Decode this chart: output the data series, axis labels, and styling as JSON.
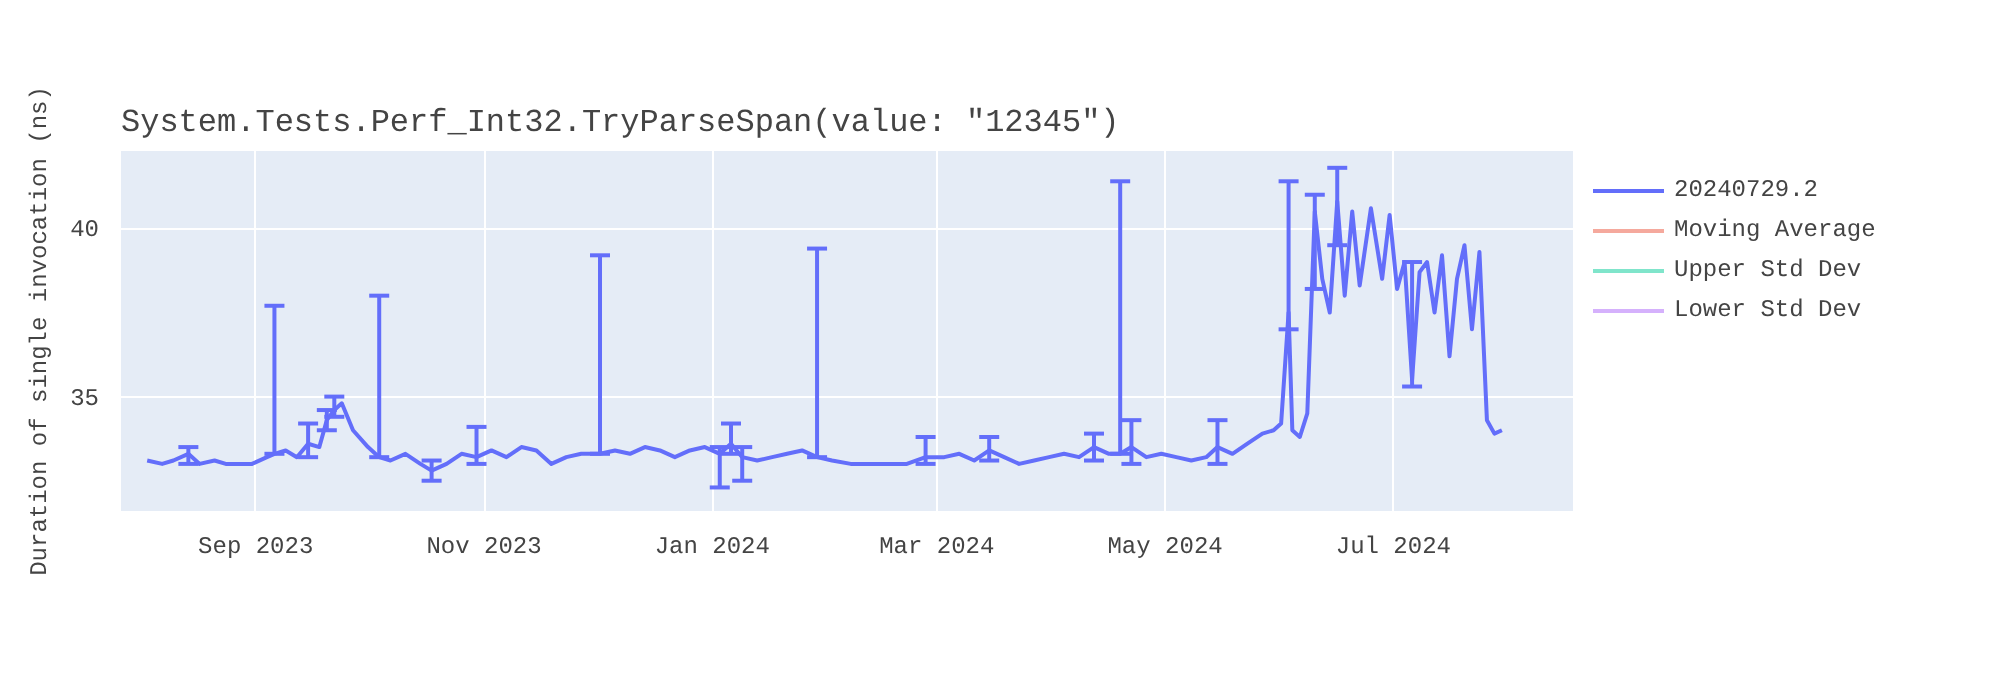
{
  "chart_data": {
    "type": "line",
    "title": "System.Tests.Perf_Int32.TryParseSpan(value: \"12345\")",
    "ylabel": "Duration of single invocation (ns)",
    "x": [
      "2023-08-03",
      "2023-08-07",
      "2023-08-10",
      "2023-08-14",
      "2023-08-17",
      "2023-08-21",
      "2023-08-24",
      "2023-08-28",
      "2023-08-31",
      "2023-09-04",
      "2023-09-06",
      "2023-09-09",
      "2023-09-12",
      "2023-09-15",
      "2023-09-18",
      "2023-09-20",
      "2023-09-22",
      "2023-09-24",
      "2023-09-27",
      "2023-10-01",
      "2023-10-04",
      "2023-10-07",
      "2023-10-11",
      "2023-10-15",
      "2023-10-18",
      "2023-10-22",
      "2023-10-26",
      "2023-10-30",
      "2023-11-03",
      "2023-11-07",
      "2023-11-11",
      "2023-11-15",
      "2023-11-19",
      "2023-11-23",
      "2023-11-27",
      "2023-12-02",
      "2023-12-06",
      "2023-12-10",
      "2023-12-14",
      "2023-12-18",
      "2023-12-22",
      "2023-12-26",
      "2023-12-30",
      "2024-01-03",
      "2024-01-06",
      "2024-01-09",
      "2024-01-13",
      "2024-01-17",
      "2024-01-21",
      "2024-01-25",
      "2024-01-29",
      "2024-02-02",
      "2024-02-07",
      "2024-02-12",
      "2024-02-17",
      "2024-02-22",
      "2024-02-27",
      "2024-03-03",
      "2024-03-07",
      "2024-03-11",
      "2024-03-15",
      "2024-03-19",
      "2024-03-23",
      "2024-03-27",
      "2024-03-31",
      "2024-04-04",
      "2024-04-08",
      "2024-04-12",
      "2024-04-16",
      "2024-04-19",
      "2024-04-22",
      "2024-04-26",
      "2024-04-30",
      "2024-05-04",
      "2024-05-08",
      "2024-05-12",
      "2024-05-15",
      "2024-05-19",
      "2024-05-23",
      "2024-05-27",
      "2024-05-30",
      "2024-06-01",
      "2024-06-03",
      "2024-06-04",
      "2024-06-06",
      "2024-06-08",
      "2024-06-10",
      "2024-06-12",
      "2024-06-14",
      "2024-06-16",
      "2024-06-18",
      "2024-06-20",
      "2024-06-22",
      "2024-06-25",
      "2024-06-28",
      "2024-06-30",
      "2024-07-02",
      "2024-07-04",
      "2024-07-06",
      "2024-07-08",
      "2024-07-10",
      "2024-07-12",
      "2024-07-14",
      "2024-07-16",
      "2024-07-18",
      "2024-07-20",
      "2024-07-22",
      "2024-07-24",
      "2024-07-26",
      "2024-07-28",
      "2024-07-30"
    ],
    "series": [
      {
        "name": "20240729.2",
        "color": "#636efa",
        "values": [
          33.1,
          33.0,
          33.1,
          33.3,
          33.0,
          33.1,
          33.0,
          33.0,
          33.0,
          33.2,
          33.3,
          33.4,
          33.2,
          33.6,
          33.5,
          34.3,
          34.6,
          34.8,
          34.0,
          33.5,
          33.2,
          33.1,
          33.3,
          33.0,
          32.8,
          33.0,
          33.3,
          33.2,
          33.4,
          33.2,
          33.5,
          33.4,
          33.0,
          33.2,
          33.3,
          33.3,
          33.4,
          33.3,
          33.5,
          33.4,
          33.2,
          33.4,
          33.5,
          33.3,
          33.6,
          33.2,
          33.1,
          33.2,
          33.3,
          33.4,
          33.2,
          33.1,
          33.0,
          33.0,
          33.0,
          33.0,
          33.2,
          33.2,
          33.3,
          33.1,
          33.4,
          33.2,
          33.0,
          33.1,
          33.2,
          33.3,
          33.2,
          33.5,
          33.3,
          33.3,
          33.5,
          33.2,
          33.3,
          33.2,
          33.1,
          33.2,
          33.5,
          33.3,
          33.6,
          33.9,
          34.0,
          34.2,
          37.5,
          34.0,
          33.8,
          34.5,
          40.5,
          38.5,
          37.5,
          40.8,
          38.0,
          40.5,
          38.3,
          40.6,
          38.5,
          40.4,
          38.2,
          39.0,
          35.5,
          38.7,
          39.0,
          37.5,
          39.2,
          36.2,
          38.5,
          39.5,
          37.0,
          39.3,
          34.3,
          33.9,
          34.0
        ],
        "errors": [
          null,
          null,
          null,
          [
            33.0,
            33.5
          ],
          null,
          null,
          null,
          null,
          null,
          null,
          [
            33.3,
            37.7
          ],
          null,
          null,
          [
            33.2,
            34.2
          ],
          null,
          [
            34.0,
            34.6
          ],
          [
            34.4,
            35.0
          ],
          null,
          null,
          null,
          [
            33.2,
            38.0
          ],
          null,
          null,
          null,
          [
            32.5,
            33.1
          ],
          null,
          null,
          [
            33.0,
            34.1
          ],
          null,
          null,
          null,
          null,
          null,
          null,
          null,
          [
            33.3,
            39.2
          ],
          null,
          null,
          null,
          null,
          null,
          null,
          null,
          [
            32.3,
            33.5
          ],
          [
            33.3,
            34.2
          ],
          [
            32.5,
            33.5
          ],
          null,
          null,
          null,
          null,
          [
            33.2,
            39.4
          ],
          null,
          null,
          null,
          null,
          null,
          [
            33.0,
            33.8
          ],
          null,
          null,
          null,
          [
            33.1,
            33.8
          ],
          null,
          null,
          null,
          null,
          null,
          null,
          [
            33.1,
            33.9
          ],
          null,
          [
            33.3,
            41.4
          ],
          [
            33.0,
            34.3
          ],
          null,
          null,
          null,
          null,
          null,
          [
            33.0,
            34.3
          ],
          null,
          null,
          null,
          null,
          null,
          [
            37.0,
            41.4
          ],
          null,
          null,
          null,
          [
            38.2,
            41.0
          ],
          null,
          null,
          [
            39.5,
            41.8
          ],
          null,
          null,
          null,
          null,
          null,
          null,
          null,
          null,
          [
            35.3,
            39.0
          ],
          null,
          null,
          null,
          null,
          null,
          null,
          null,
          null,
          null,
          null,
          null,
          null
        ]
      },
      {
        "name": "Moving Average",
        "color": "#f5a99d",
        "values": [
          null,
          null,
          null,
          null,
          null,
          null,
          null,
          null,
          null,
          null,
          null,
          null,
          null,
          null,
          null,
          null,
          null,
          null,
          null,
          null,
          null,
          null,
          null,
          null,
          null,
          null,
          null,
          null,
          null,
          null,
          null,
          null,
          null,
          null,
          null,
          null,
          null,
          null,
          null,
          null,
          null,
          null,
          null,
          null,
          null,
          null,
          null,
          null,
          null,
          null,
          null,
          null,
          null,
          null,
          null,
          null,
          null,
          null,
          null,
          null,
          null,
          null,
          null,
          null,
          null,
          null,
          null,
          null,
          null,
          null,
          null,
          null,
          null,
          null,
          null,
          null,
          null,
          null,
          null,
          null,
          null,
          null,
          null,
          null,
          null,
          null,
          null,
          null,
          null,
          null,
          null,
          null,
          null,
          null,
          null,
          null,
          null,
          null,
          null,
          null,
          null,
          null,
          null,
          null,
          null,
          null,
          null,
          null,
          null,
          null,
          null
        ]
      },
      {
        "name": "Upper Std Dev",
        "color": "#80e5cb",
        "values": [
          null,
          null,
          null,
          null,
          null,
          null,
          null,
          null,
          null,
          null,
          null,
          null,
          null,
          null,
          null,
          null,
          null,
          null,
          null,
          null,
          null,
          null,
          null,
          null,
          null,
          null,
          null,
          null,
          null,
          null,
          null,
          null,
          null,
          null,
          null,
          null,
          null,
          null,
          null,
          null,
          null,
          null,
          null,
          null,
          null,
          null,
          null,
          null,
          null,
          null,
          null,
          null,
          null,
          null,
          null,
          null,
          null,
          null,
          null,
          null,
          null,
          null,
          null,
          null,
          null,
          null,
          null,
          null,
          null,
          null,
          null,
          null,
          null,
          null,
          null,
          null,
          null,
          null,
          null,
          null,
          null,
          null,
          null,
          null,
          null,
          null,
          null,
          null,
          null,
          null,
          null,
          null,
          null,
          null,
          null,
          null,
          null,
          null,
          null,
          null,
          null,
          null,
          null,
          null,
          null,
          null,
          null,
          null,
          null,
          null,
          null
        ]
      },
      {
        "name": "Lower Std Dev",
        "color": "#d5b1fc",
        "values": [
          null,
          null,
          null,
          null,
          null,
          null,
          null,
          null,
          null,
          null,
          null,
          null,
          null,
          null,
          null,
          null,
          null,
          null,
          null,
          null,
          null,
          null,
          null,
          null,
          null,
          null,
          null,
          null,
          null,
          null,
          null,
          null,
          null,
          null,
          null,
          null,
          null,
          null,
          null,
          null,
          null,
          null,
          null,
          null,
          null,
          null,
          null,
          null,
          null,
          null,
          null,
          null,
          null,
          null,
          null,
          null,
          null,
          null,
          null,
          null,
          null,
          null,
          null,
          null,
          null,
          null,
          null,
          null,
          null,
          null,
          null,
          null,
          null,
          null,
          null,
          null,
          null,
          null,
          null,
          null,
          null,
          null,
          null,
          null,
          null,
          null,
          null,
          null,
          null,
          null,
          null,
          null,
          null,
          null,
          null,
          null,
          null,
          null,
          null,
          null,
          null,
          null,
          null,
          null,
          null,
          null,
          null,
          null,
          null,
          null,
          null
        ]
      }
    ],
    "xlim": [
      "2023-07-27",
      "2024-08-18"
    ],
    "xticks": [
      {
        "value": "2023-09-01",
        "label": "Sep 2023"
      },
      {
        "value": "2023-11-01",
        "label": "Nov 2023"
      },
      {
        "value": "2024-01-01",
        "label": "Jan 2024"
      },
      {
        "value": "2024-03-01",
        "label": "Mar 2024"
      },
      {
        "value": "2024-05-01",
        "label": "May 2024"
      },
      {
        "value": "2024-07-01",
        "label": "Jul 2024"
      }
    ],
    "ylim": [
      31.6,
      42.3
    ],
    "yticks": [
      35,
      40
    ],
    "grid": true,
    "legend": "top right"
  }
}
